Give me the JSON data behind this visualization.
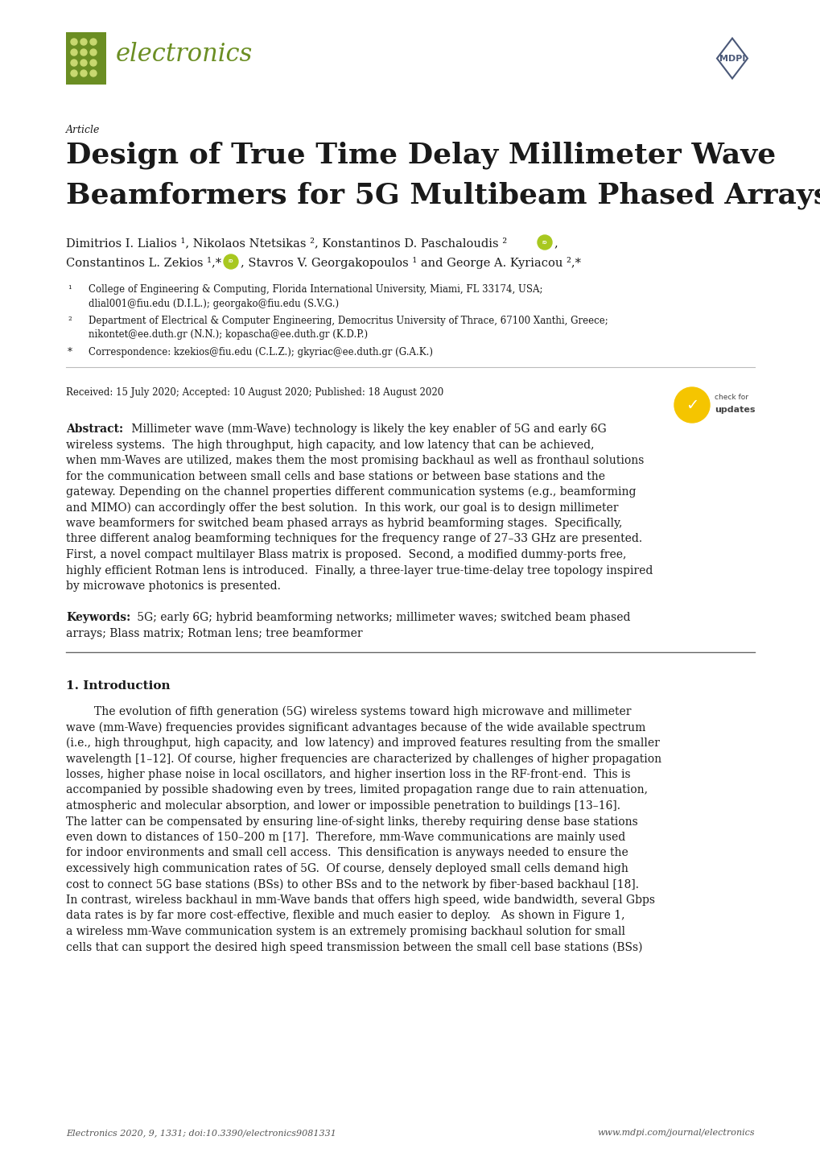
{
  "page_bg": "#ffffff",
  "journal_name": "electronics",
  "article_label": "Article",
  "title_line1": "Design of True Time Delay Millimeter Wave",
  "title_line2": "Beamformers for 5G Multibeam Phased Arrays",
  "authors_line1": "Dimitrios I. Lialios ¹, Nikolaos Ntetsikas ², Konstantinos D. Paschaloudis ²",
  "authors_line2": "Constantinos L. Zekios ¹,*",
  "authors_line2b": ", Stavros V. Georgakopoulos ¹ and George A. Kyriacou ²,*",
  "affil1a": "¹",
  "affil1b": "College of Engineering & Computing, Florida International University, Miami, FL 33174, USA;",
  "affil1c": "dlial001@fiu.edu (D.I.L.); georgako@fiu.edu (S.V.G.)",
  "affil2a": "²",
  "affil2b": "Department of Electrical & Computer Engineering, Democritus University of Thrace, 67100 Xanthi, Greece;",
  "affil2c": "nikontet@ee.duth.gr (N.N.); kopascha@ee.duth.gr (K.D.P.)",
  "affil3a": "*",
  "affil3b": "Correspondence: kzekios@fiu.edu (C.L.Z.); gkyriac@ee.duth.gr (G.A.K.)",
  "received": "Received: 15 July 2020; Accepted: 10 August 2020; Published: 18 August 2020",
  "abstract_bold": "Abstract:",
  "abstract_body_lines": [
    " Millimeter wave (mm-Wave) technology is likely the key enabler of 5G and early 6G",
    "wireless systems.  The high throughput, high capacity, and low latency that can be achieved,",
    "when mm-Waves are utilized, makes them the most promising backhaul as well as fronthaul solutions",
    "for the communication between small cells and base stations or between base stations and the",
    "gateway. Depending on the channel properties different communication systems (e.g., beamforming",
    "and MIMO) can accordingly offer the best solution.  In this work, our goal is to design millimeter",
    "wave beamformers for switched beam phased arrays as hybrid beamforming stages.  Specifically,",
    "three different analog beamforming techniques for the frequency range of 27–33 GHz are presented.",
    "First, a novel compact multilayer Blass matrix is proposed.  Second, a modified dummy-ports free,",
    "highly efficient Rotman lens is introduced.  Finally, a three-layer true-time-delay tree topology inspired",
    "by microwave photonics is presented."
  ],
  "keywords_bold": "Keywords:",
  "keywords_line1": " 5G; early 6G; hybrid beamforming networks; millimeter waves; switched beam phased",
  "keywords_line2": "arrays; Blass matrix; Rotman lens; tree beamformer",
  "section1_label": "1. Introduction",
  "intro_lines": [
    "The evolution of fifth generation (5G) wireless systems toward high microwave and millimeter",
    "wave (mm-Wave) frequencies provides significant advantages because of the wide available spectrum",
    "(i.e., high throughput, high capacity, and  low latency) and improved features resulting from the smaller",
    "wavelength [1–12]. Of course, higher frequencies are characterized by challenges of higher propagation",
    "losses, higher phase noise in local oscillators, and higher insertion loss in the RF-front-end.  This is",
    "accompanied by possible shadowing even by trees, limited propagation range due to rain attenuation,",
    "atmospheric and molecular absorption, and lower or impossible penetration to buildings [13–16].",
    "The latter can be compensated by ensuring line-of-sight links, thereby requiring dense base stations",
    "even down to distances of 150–200 m [17].  Therefore, mm-Wave communications are mainly used",
    "for indoor environments and small cell access.  This densification is anyways needed to ensure the",
    "excessively high communication rates of 5G.  Of course, densely deployed small cells demand high",
    "cost to connect 5G base stations (BSs) to other BSs and to the network by fiber-based backhaul [18].",
    "In contrast, wireless backhaul in mm-Wave bands that offers high speed, wide bandwidth, several Gbps",
    "data rates is by far more cost-effective, flexible and much easier to deploy.   As shown in Figure 1,",
    "a wireless mm-Wave communication system is an extremely promising backhaul solution for small",
    "cells that can support the desired high speed transmission between the small cell base stations (BSs)"
  ],
  "footer_left": "Electronics 2020, 9, 1331; doi:10.3390/electronics9081331",
  "footer_right": "www.mdpi.com/journal/electronics",
  "logo_green": "#6b8e23",
  "logo_green_light": "#8fae3a",
  "mdpi_blue": "#4a5878",
  "text_black": "#1a1a1a",
  "text_gray": "#555555",
  "line_gray": "#bbbbbb",
  "line_dark": "#666666"
}
